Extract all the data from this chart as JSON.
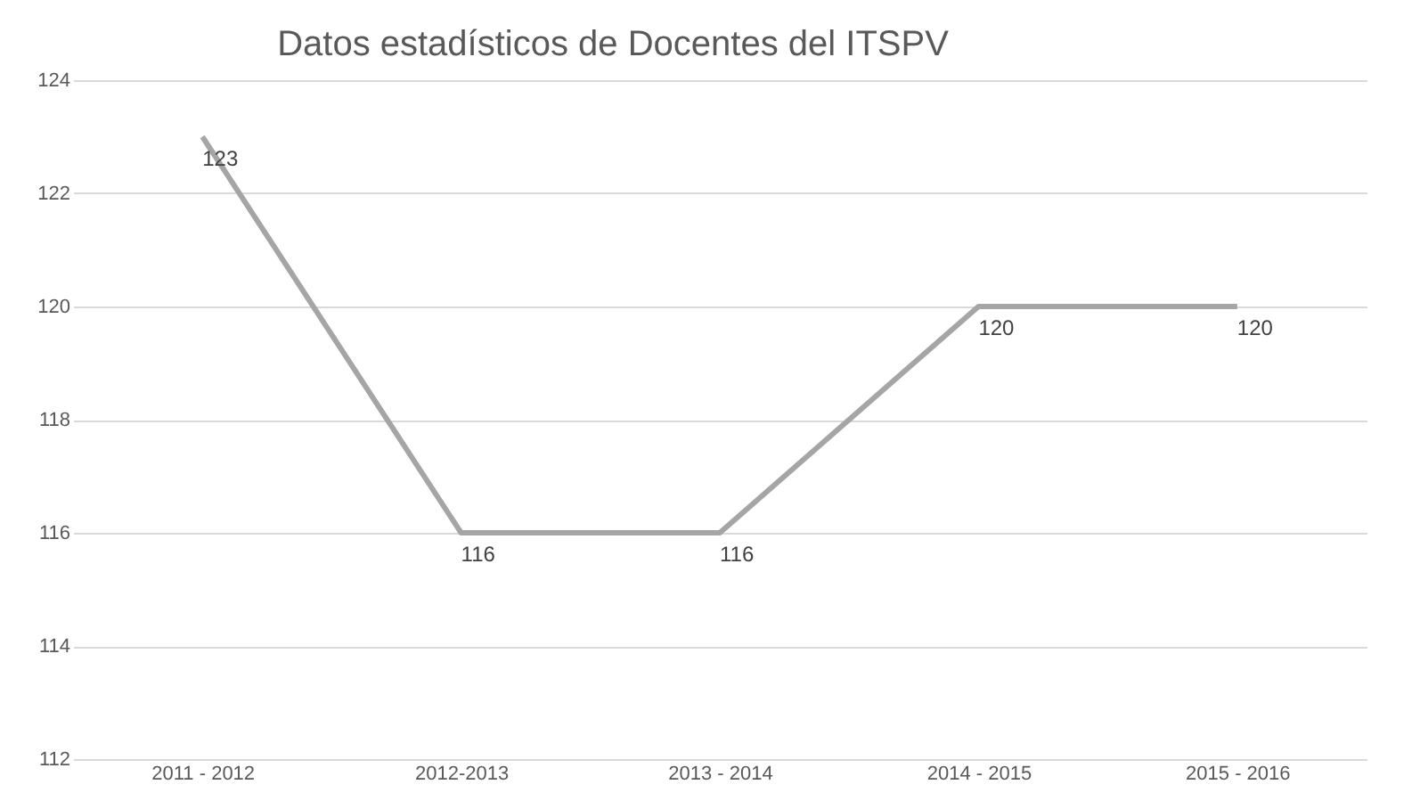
{
  "chart_data": {
    "type": "line",
    "title": "Datos estadísticos de Docentes del ITSPV",
    "categories": [
      "2011 - 2012",
      "2012-2013",
      "2013 - 2014",
      "2014 - 2015",
      "2015 - 2016"
    ],
    "series": [
      {
        "color": "#a5a5a5",
        "values": [
          123,
          116,
          116,
          120,
          120
        ]
      }
    ],
    "ylim": [
      112,
      124
    ],
    "yticks": [
      112,
      114,
      116,
      118,
      120,
      122,
      124
    ],
    "grid": "y",
    "data_labels": true,
    "marker": "none",
    "line_style": "solid"
  }
}
